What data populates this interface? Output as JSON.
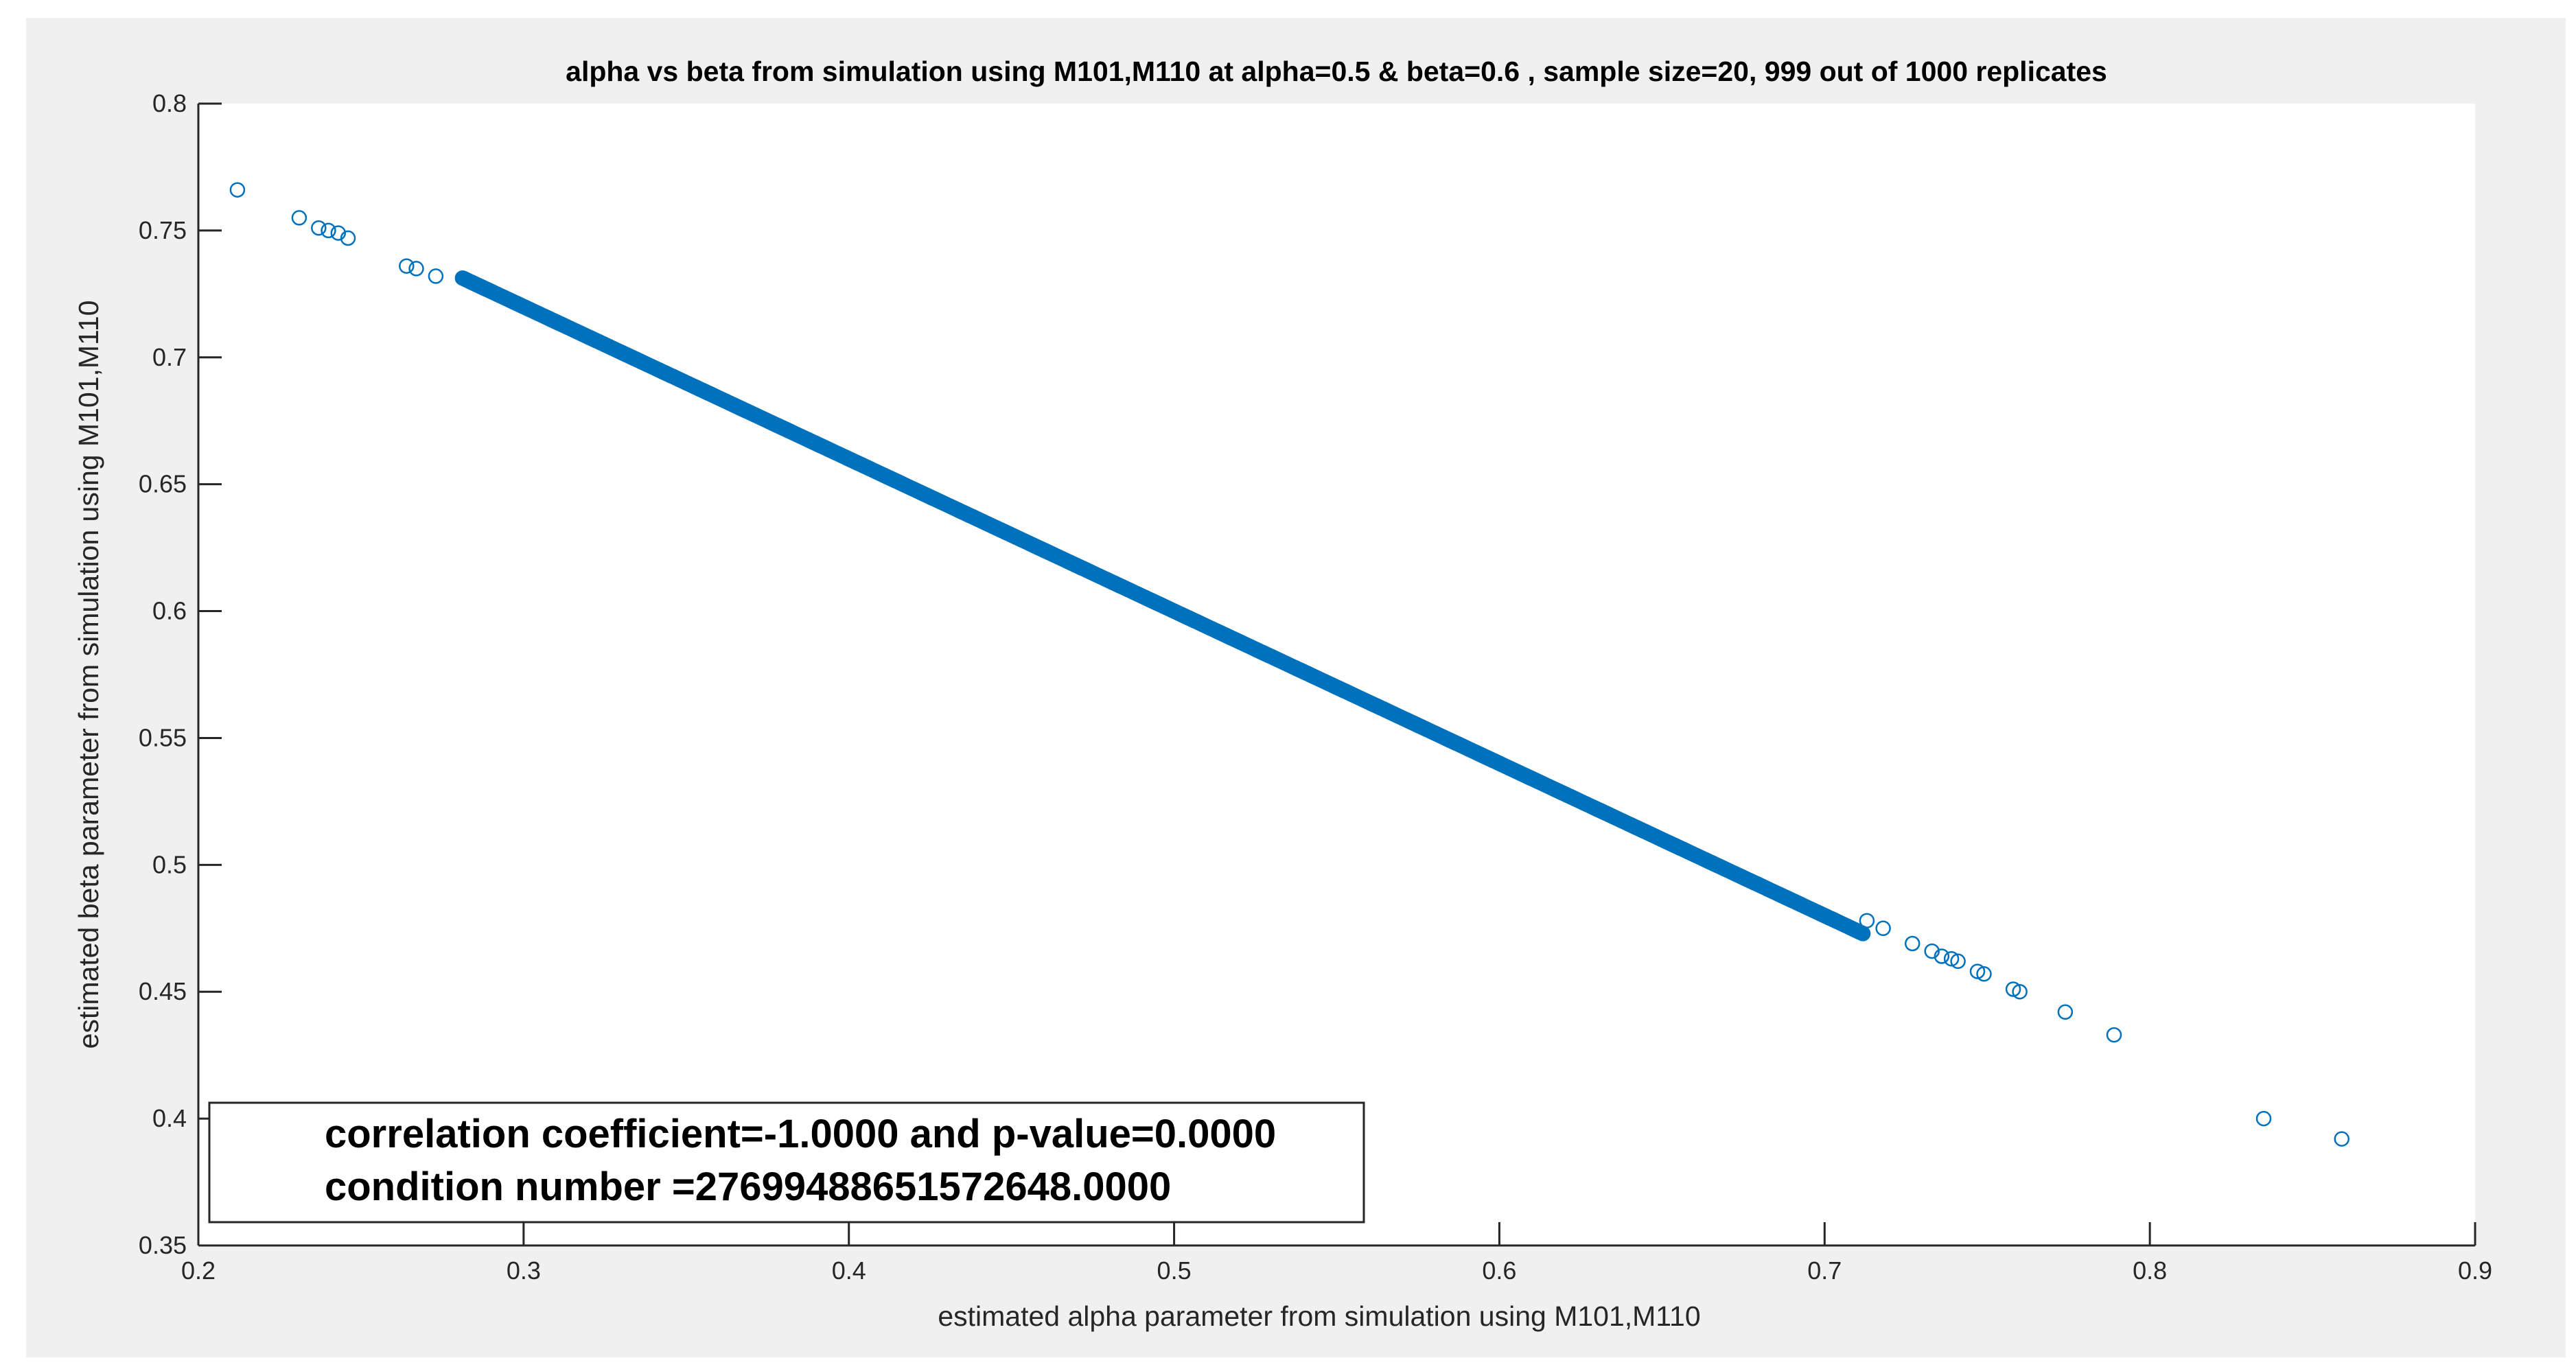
{
  "figure": {
    "background_color": "#f0f0f0",
    "axes_background_color": "#ffffff",
    "marker_color": "#0072bd"
  },
  "chart_data": {
    "type": "scatter",
    "title": "alpha vs beta from simulation using M101,M110 at alpha=0.5 & beta=0.6 , sample size=20, 999 out of 1000 replicates",
    "xlabel": "estimated alpha parameter from simulation using M101,M110",
    "ylabel": "estimated beta parameter from simulation using M101,M110",
    "xlim": [
      0.2,
      0.9
    ],
    "ylim": [
      0.35,
      0.8
    ],
    "xticks": [
      0.2,
      0.3,
      0.4,
      0.5,
      0.6,
      0.7,
      0.8,
      0.9
    ],
    "xtick_labels": [
      "0.2",
      "0.3",
      "0.4",
      "0.5",
      "0.6",
      "0.7",
      "0.8",
      "0.9"
    ],
    "yticks": [
      0.35,
      0.4,
      0.45,
      0.5,
      0.55,
      0.6,
      0.65,
      0.7,
      0.75,
      0.8
    ],
    "ytick_labels": [
      "0.35",
      "0.4",
      "0.45",
      "0.5",
      "0.55",
      "0.6",
      "0.65",
      "0.7",
      "0.75",
      "0.8"
    ],
    "grid": false,
    "marker": "open-circle",
    "relationship": "beta = 0.9 - 0.6 * alpha",
    "points": [
      [
        0.212,
        0.766
      ],
      [
        0.231,
        0.755
      ],
      [
        0.237,
        0.751
      ],
      [
        0.24,
        0.75
      ],
      [
        0.243,
        0.749
      ],
      [
        0.246,
        0.747
      ],
      [
        0.264,
        0.736
      ],
      [
        0.267,
        0.735
      ],
      [
        0.273,
        0.732
      ],
      [
        0.835,
        0.4
      ],
      [
        0.859,
        0.392
      ],
      [
        0.789,
        0.433
      ],
      [
        0.774,
        0.442
      ],
      [
        0.76,
        0.45
      ],
      [
        0.758,
        0.451
      ],
      [
        0.749,
        0.457
      ],
      [
        0.747,
        0.458
      ],
      [
        0.741,
        0.462
      ],
      [
        0.739,
        0.463
      ],
      [
        0.736,
        0.464
      ],
      [
        0.733,
        0.466
      ],
      [
        0.727,
        0.469
      ],
      [
        0.718,
        0.475
      ],
      [
        0.713,
        0.478
      ]
    ],
    "dense_band": {
      "x_from": 0.281,
      "x_to": 0.712,
      "count": 975
    },
    "annotation": {
      "lines": [
        "correlation coefficient=-1.0000 and p-value=0.0000",
        "condition number =27699488651572648.0000"
      ]
    }
  }
}
